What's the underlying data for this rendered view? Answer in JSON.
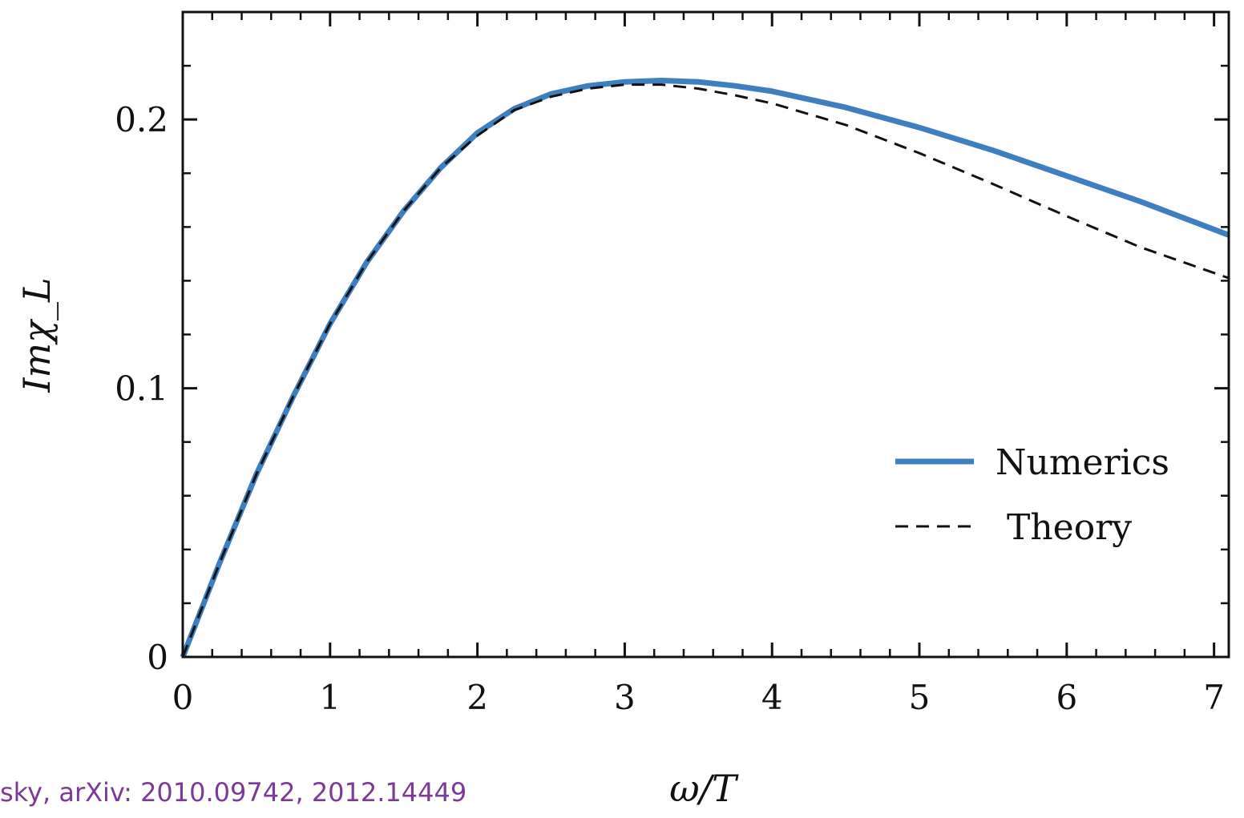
{
  "chart_data": {
    "type": "line",
    "xlabel": "ω/T",
    "ylabel": "Imχ_L",
    "xlim": [
      0,
      7.1
    ],
    "ylim": [
      0,
      0.24
    ],
    "x_ticks": [
      "0",
      "1",
      "2",
      "3",
      "4",
      "5",
      "6",
      "7"
    ],
    "y_ticks": [
      "0",
      "0.1",
      "0.2"
    ],
    "grid": false,
    "legend_position": "right-middle",
    "series": [
      {
        "name": "Numerics",
        "style": "solid",
        "color": "#3d7fbf",
        "x": [
          0,
          0.25,
          0.5,
          0.75,
          1,
          1.25,
          1.5,
          1.75,
          2,
          2.25,
          2.5,
          2.75,
          3,
          3.25,
          3.5,
          3.75,
          4,
          4.5,
          5,
          5.5,
          6,
          6.5,
          7.1
        ],
        "y": [
          0,
          0.035,
          0.068,
          0.097,
          0.124,
          0.147,
          0.166,
          0.182,
          0.195,
          0.204,
          0.2095,
          0.2125,
          0.214,
          0.2145,
          0.214,
          0.2125,
          0.2105,
          0.2045,
          0.197,
          0.1885,
          0.179,
          0.1695,
          0.157
        ]
      },
      {
        "name": "Theory",
        "style": "dashed",
        "color": "#111111",
        "x": [
          0,
          0.25,
          0.5,
          0.75,
          1,
          1.25,
          1.5,
          1.75,
          2,
          2.25,
          2.5,
          2.75,
          3,
          3.25,
          3.5,
          3.75,
          4,
          4.5,
          5,
          5.5,
          6,
          6.5,
          7.1
        ],
        "y": [
          0,
          0.035,
          0.068,
          0.097,
          0.124,
          0.147,
          0.166,
          0.182,
          0.194,
          0.2035,
          0.2085,
          0.2115,
          0.213,
          0.213,
          0.2115,
          0.209,
          0.206,
          0.198,
          0.1875,
          0.176,
          0.164,
          0.1525,
          0.141
        ]
      }
    ]
  },
  "citation": "sky, arXiv: 2010.09742, 2012.14449"
}
